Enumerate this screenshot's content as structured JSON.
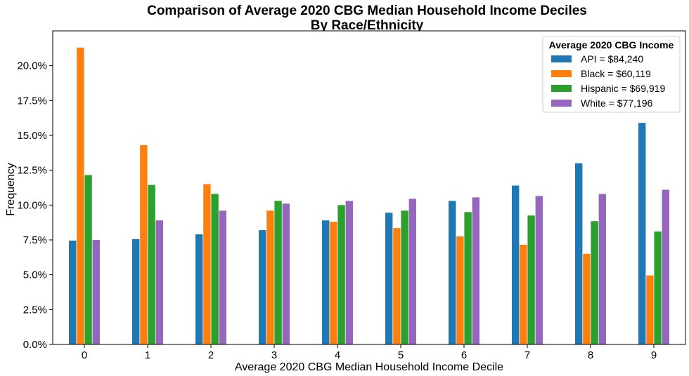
{
  "chart_data": {
    "type": "bar",
    "title_line1": "Comparison of Average 2020 CBG Median Household Income Deciles",
    "title_line2": "By Race/Ethnicity",
    "xlabel": "Average 2020 CBG Median Household Income Decile",
    "ylabel": "Frequency",
    "categories": [
      "0",
      "1",
      "2",
      "3",
      "4",
      "5",
      "6",
      "7",
      "8",
      "9"
    ],
    "ylim": [
      0,
      22.5
    ],
    "yticks": [
      0,
      2.5,
      5,
      7.5,
      10,
      12.5,
      15,
      17.5,
      20
    ],
    "ytick_labels": [
      "0.0%",
      "2.5%",
      "5.0%",
      "7.5%",
      "10.0%",
      "12.5%",
      "15.0%",
      "17.5%",
      "20.0%"
    ],
    "legend_title": "Average 2020 CBG Income",
    "legend_position": "top-right",
    "series": [
      {
        "name": "API = $84,240",
        "color": "#1f77b4",
        "values": [
          7.45,
          7.55,
          7.9,
          8.2,
          8.9,
          9.45,
          10.3,
          11.4,
          13.0,
          15.9
        ]
      },
      {
        "name": "Black = $60,119",
        "color": "#ff7f0e",
        "values": [
          21.3,
          14.3,
          11.5,
          9.6,
          8.8,
          8.35,
          7.75,
          7.15,
          6.5,
          4.95
        ]
      },
      {
        "name": "Hispanic = $69,919",
        "color": "#2ca02c",
        "values": [
          12.15,
          11.45,
          10.8,
          10.3,
          10.0,
          9.6,
          9.5,
          9.25,
          8.85,
          8.1
        ]
      },
      {
        "name": "White = $77,196",
        "color": "#9467bd",
        "values": [
          7.5,
          8.9,
          9.6,
          10.1,
          10.3,
          10.45,
          10.55,
          10.65,
          10.8,
          11.1
        ]
      }
    ]
  }
}
